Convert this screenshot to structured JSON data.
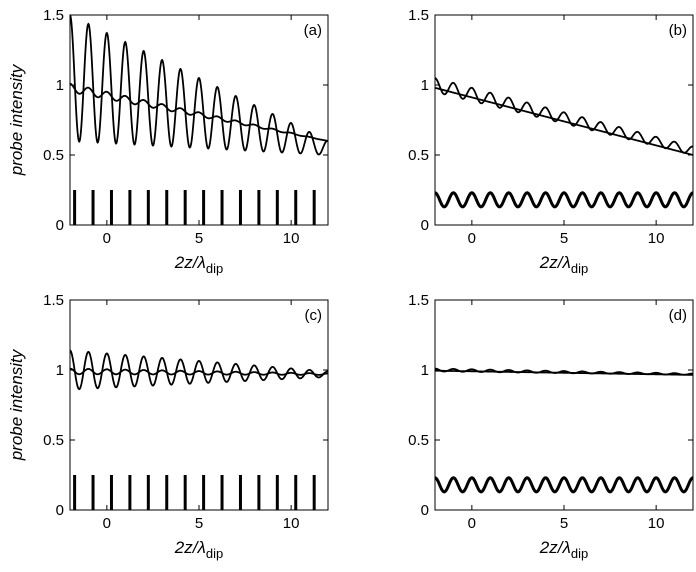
{
  "chart_data": [
    {
      "type": "line",
      "panel_label": "(a)",
      "ylabel": "probe intensity",
      "xlabel": {
        "main": "2z/λ",
        "sub": "dip"
      },
      "xlim": [
        -2,
        12
      ],
      "ylim": [
        0,
        1.5
      ],
      "xticks": [
        "0",
        "5",
        "10"
      ],
      "yticks": [
        "0",
        "0.5",
        "1",
        "1.5"
      ],
      "series": [
        {
          "kind": "oscillating",
          "envelope": [
            [
              -2,
              1.05
            ],
            [
              12,
              0.55
            ]
          ],
          "amplitude": [
            [
              -2,
              0.45
            ],
            [
              12,
              0.05
            ]
          ],
          "period": 1.0
        },
        {
          "kind": "oscillating",
          "envelope": [
            [
              -2,
              0.98
            ],
            [
              12,
              0.6
            ]
          ],
          "amplitude": [
            [
              -2,
              0.03
            ],
            [
              12,
              0.0
            ]
          ],
          "period": 1.0
        }
      ],
      "sticks": {
        "x_start": -1.75,
        "period": 1.0,
        "count": 14,
        "height": 0.25
      }
    },
    {
      "type": "line",
      "panel_label": "(b)",
      "ylabel": "",
      "xlabel": {
        "main": "2z/λ",
        "sub": "dip"
      },
      "xlim": [
        -2,
        12
      ],
      "ylim": [
        0,
        1.5
      ],
      "xticks": [
        "0",
        "5",
        "10"
      ],
      "yticks": [
        "0",
        "0.5",
        "1",
        "1.5"
      ],
      "series": [
        {
          "kind": "oscillating",
          "envelope": [
            [
              -2,
              1.0
            ],
            [
              12,
              0.53
            ]
          ],
          "amplitude": [
            [
              -2,
              0.05
            ],
            [
              12,
              0.03
            ]
          ],
          "period": 1.0
        },
        {
          "kind": "oscillating",
          "envelope": [
            [
              -2,
              0.98
            ],
            [
              12,
              0.5
            ]
          ],
          "amplitude": [
            [
              -2,
              0.0
            ],
            [
              12,
              0.0
            ]
          ],
          "period": 1.0
        }
      ],
      "wave": {
        "center": 0.18,
        "amplitude": 0.05,
        "period": 1.0
      }
    },
    {
      "type": "line",
      "panel_label": "(c)",
      "ylabel": "probe intensity",
      "xlabel": {
        "main": "2z/λ",
        "sub": "dip"
      },
      "xlim": [
        -2,
        12
      ],
      "ylim": [
        0,
        1.5
      ],
      "xticks": [
        "0",
        "5",
        "10"
      ],
      "yticks": [
        "0",
        "0.5",
        "1",
        "1.5"
      ],
      "series": [
        {
          "kind": "oscillating",
          "envelope": [
            [
              -2,
              1.0
            ],
            [
              12,
              0.97
            ]
          ],
          "amplitude": [
            [
              -2,
              0.14
            ],
            [
              12,
              0.02
            ]
          ],
          "period": 1.0
        },
        {
          "kind": "oscillating",
          "envelope": [
            [
              -2,
              0.99
            ],
            [
              12,
              0.97
            ]
          ],
          "amplitude": [
            [
              -2,
              0.02
            ],
            [
              12,
              0.005
            ]
          ],
          "period": 1.0
        }
      ],
      "sticks": {
        "x_start": -1.75,
        "period": 1.0,
        "count": 14,
        "height": 0.25
      }
    },
    {
      "type": "line",
      "panel_label": "(d)",
      "ylabel": "",
      "xlabel": {
        "main": "2z/λ",
        "sub": "dip"
      },
      "xlim": [
        -2,
        12
      ],
      "ylim": [
        0,
        1.5
      ],
      "xticks": [
        "0",
        "5",
        "10"
      ],
      "yticks": [
        "0",
        "0.5",
        "1",
        "1.5"
      ],
      "series": [
        {
          "kind": "oscillating",
          "envelope": [
            [
              -2,
              1.0
            ],
            [
              12,
              0.97
            ]
          ],
          "amplitude": [
            [
              -2,
              0.01
            ],
            [
              12,
              0.005
            ]
          ],
          "period": 1.0
        },
        {
          "kind": "oscillating",
          "envelope": [
            [
              -2,
              0.995
            ],
            [
              12,
              0.965
            ]
          ],
          "amplitude": [
            [
              -2,
              0.0
            ],
            [
              12,
              0.0
            ]
          ],
          "period": 1.0
        }
      ],
      "wave": {
        "center": 0.18,
        "amplitude": 0.05,
        "period": 1.0
      }
    }
  ]
}
